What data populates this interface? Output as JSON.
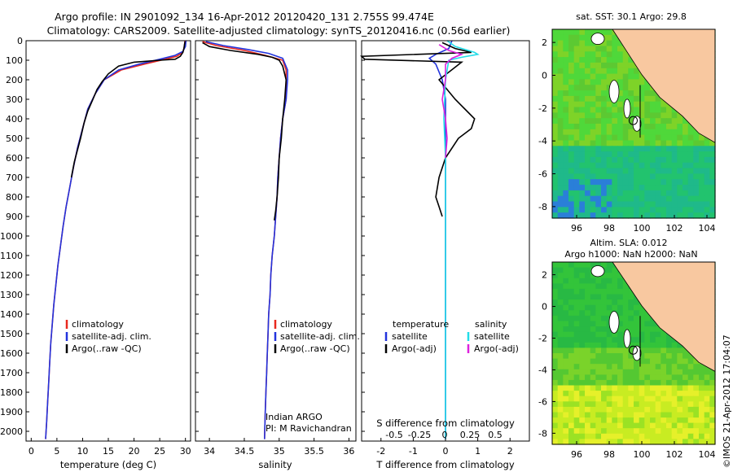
{
  "header": {
    "title_line1": "Argo profile: IN 2901092_134 16-Apr-2012 20120420_131 2.755S 99.474E",
    "title_line2": "Climatology: CARS2009. Satellite-adjusted climatology: synTS_20120416.nc (0.56d earlier)"
  },
  "colors": {
    "climatology": "#e8281e",
    "satellite": "#2233dd",
    "argo": "#000000",
    "satellite_salinity": "#22dde8",
    "argo_salinity_adj": "#dd22dd",
    "land": "#f8c8a0"
  },
  "chart_data": [
    {
      "type": "line",
      "panel": "temperature",
      "xlabel": "temperature (deg C)",
      "xlim": [
        -1,
        31
      ],
      "xticks": [
        0,
        5,
        10,
        15,
        20,
        25,
        30
      ],
      "ylim": [
        2050,
        0
      ],
      "yticks": [
        0,
        100,
        200,
        300,
        400,
        500,
        600,
        700,
        800,
        900,
        1000,
        1100,
        1200,
        1300,
        1400,
        1500,
        1600,
        1700,
        1800,
        1900,
        2000
      ],
      "legend": [
        "climatology",
        "satellite-adj. clim.",
        "Argo(..raw -QC)"
      ],
      "series": [
        {
          "name": "climatology",
          "color": "#e8281e",
          "points": [
            [
              29.9,
              0
            ],
            [
              29.8,
              30
            ],
            [
              29.5,
              60
            ],
            [
              28.3,
              80
            ],
            [
              26,
              95
            ],
            [
              22,
              120
            ],
            [
              17.5,
              150
            ],
            [
              14.2,
              200
            ],
            [
              12.5,
              270
            ],
            [
              11,
              350
            ],
            [
              10,
              450
            ],
            [
              9,
              550
            ],
            [
              8.2,
              650
            ],
            [
              7.5,
              750
            ],
            [
              6.8,
              850
            ],
            [
              6.2,
              950
            ],
            [
              5.7,
              1050
            ],
            [
              5.2,
              1150
            ],
            [
              4.8,
              1250
            ],
            [
              4.4,
              1350
            ],
            [
              4.1,
              1450
            ],
            [
              3.8,
              1550
            ],
            [
              3.6,
              1650
            ],
            [
              3.4,
              1750
            ],
            [
              3.2,
              1850
            ],
            [
              3.0,
              1950
            ],
            [
              2.8,
              2040
            ]
          ]
        },
        {
          "name": "satellite-adj. clim.",
          "color": "#2233dd",
          "points": [
            [
              30.1,
              0
            ],
            [
              30,
              30
            ],
            [
              29.5,
              55
            ],
            [
              28,
              75
            ],
            [
              25,
              95
            ],
            [
              21,
              120
            ],
            [
              17,
              150
            ],
            [
              14.2,
              200
            ],
            [
              12.5,
              270
            ],
            [
              11,
              350
            ],
            [
              10,
              450
            ],
            [
              9,
              550
            ],
            [
              8.2,
              650
            ],
            [
              7.5,
              750
            ],
            [
              6.8,
              850
            ],
            [
              6.2,
              950
            ],
            [
              5.7,
              1050
            ],
            [
              5.2,
              1150
            ],
            [
              4.8,
              1250
            ],
            [
              4.4,
              1350
            ],
            [
              4.1,
              1450
            ],
            [
              3.8,
              1550
            ],
            [
              3.6,
              1650
            ],
            [
              3.4,
              1750
            ],
            [
              3.2,
              1850
            ],
            [
              3.0,
              1950
            ],
            [
              2.8,
              2040
            ]
          ]
        },
        {
          "name": "Argo(..raw -QC)",
          "color": "#000000",
          "points": [
            [
              29.9,
              5
            ],
            [
              29.7,
              40
            ],
            [
              29.5,
              60
            ],
            [
              29,
              80
            ],
            [
              28,
              95
            ],
            [
              25,
              100
            ],
            [
              20,
              110
            ],
            [
              17,
              130
            ],
            [
              15,
              170
            ],
            [
              13.8,
              210
            ],
            [
              12.8,
              250
            ],
            [
              12,
              300
            ],
            [
              11,
              360
            ],
            [
              10.3,
              420
            ],
            [
              9.6,
              500
            ],
            [
              9,
              560
            ],
            [
              8.4,
              620
            ],
            [
              7.8,
              700
            ]
          ]
        }
      ]
    },
    {
      "type": "line",
      "panel": "salinity",
      "xlabel": "salinity",
      "xlim": [
        33.8,
        36.1
      ],
      "xticks": [
        34,
        34.5,
        35,
        35.5,
        36
      ],
      "ylim": [
        2050,
        0
      ],
      "legend": [
        "climatology",
        "satellite-adj. clim.",
        "Argo(..raw -QC)"
      ],
      "annotation": [
        "Indian ARGO",
        "PI: M Ravichandran"
      ],
      "series": [
        {
          "name": "climatology",
          "color": "#e8281e",
          "points": [
            [
              33.9,
              5
            ],
            [
              34.1,
              25
            ],
            [
              34.5,
              50
            ],
            [
              34.8,
              75
            ],
            [
              35.05,
              100
            ],
            [
              35.1,
              150
            ],
            [
              35.1,
              200
            ],
            [
              35.1,
              300
            ],
            [
              35.05,
              400
            ],
            [
              35.02,
              500
            ],
            [
              35.0,
              600
            ],
            [
              34.98,
              700
            ],
            [
              34.97,
              800
            ],
            [
              34.95,
              900
            ],
            [
              34.93,
              1000
            ],
            [
              34.9,
              1100
            ],
            [
              34.88,
              1200
            ],
            [
              34.87,
              1300
            ],
            [
              34.85,
              1400
            ],
            [
              34.84,
              1500
            ],
            [
              34.83,
              1600
            ],
            [
              34.82,
              1700
            ],
            [
              34.81,
              1800
            ],
            [
              34.8,
              1900
            ],
            [
              34.79,
              2040
            ]
          ]
        },
        {
          "name": "satellite-adj. clim.",
          "color": "#2233dd",
          "points": [
            [
              33.95,
              5
            ],
            [
              34.2,
              25
            ],
            [
              34.55,
              45
            ],
            [
              34.85,
              65
            ],
            [
              35.05,
              90
            ],
            [
              35.12,
              150
            ],
            [
              35.12,
              200
            ],
            [
              35.1,
              300
            ],
            [
              35.05,
              400
            ],
            [
              35.02,
              500
            ],
            [
              35.0,
              600
            ],
            [
              34.98,
              700
            ],
            [
              34.97,
              800
            ],
            [
              34.95,
              900
            ],
            [
              34.93,
              1000
            ],
            [
              34.9,
              1100
            ],
            [
              34.88,
              1200
            ],
            [
              34.87,
              1300
            ],
            [
              34.85,
              1400
            ],
            [
              34.84,
              1500
            ],
            [
              34.83,
              1600
            ],
            [
              34.82,
              1700
            ],
            [
              34.81,
              1800
            ],
            [
              34.8,
              1900
            ],
            [
              34.79,
              2040
            ]
          ]
        },
        {
          "name": "Argo(..raw -QC)",
          "color": "#000000",
          "points": [
            [
              33.9,
              10
            ],
            [
              34.0,
              30
            ],
            [
              34.3,
              50
            ],
            [
              34.7,
              70
            ],
            [
              34.9,
              85
            ],
            [
              35.0,
              100
            ],
            [
              35.05,
              130
            ],
            [
              35.1,
              200
            ],
            [
              35.08,
              300
            ],
            [
              35.05,
              400
            ],
            [
              35.03,
              500
            ],
            [
              35.0,
              600
            ],
            [
              34.99,
              700
            ],
            [
              34.97,
              800
            ],
            [
              34.95,
              870
            ],
            [
              34.93,
              920
            ]
          ]
        }
      ]
    },
    {
      "type": "line",
      "panel": "difference",
      "xlabel_bottom": "T difference from climatology",
      "xlabel_top": "S difference from climatology",
      "xlim_T": [
        -2.6,
        2.6
      ],
      "xticks_T": [
        -2,
        -1,
        0,
        1,
        2
      ],
      "xticks_S": [
        "-0.5",
        "-0.25",
        "0",
        "0.25",
        "0.5"
      ],
      "ylim": [
        2050,
        0
      ],
      "legend_temperature_title": "temperature",
      "legend_salinity_title": "salinity",
      "legend": [
        "satellite",
        "Argo(-adj)",
        "satellite",
        "Argo(-adj)"
      ],
      "series": [
        {
          "name": "satellite",
          "group": "temperature",
          "color": "#2233dd",
          "points": [
            [
              0.2,
              0
            ],
            [
              0.1,
              40
            ],
            [
              -0.3,
              70
            ],
            [
              -0.5,
              90
            ],
            [
              -0.3,
              120
            ],
            [
              -0.1,
              200
            ],
            [
              0,
              300
            ],
            [
              0,
              500
            ],
            [
              0,
              800
            ],
            [
              0,
              1200
            ],
            [
              0,
              1600
            ],
            [
              0,
              2040
            ]
          ]
        },
        {
          "name": "Argo(-adj)",
          "group": "temperature",
          "color": "#000000",
          "points": [
            [
              -0.1,
              10
            ],
            [
              0.3,
              40
            ],
            [
              0.8,
              60
            ],
            [
              -2.6,
              80
            ],
            [
              -2.5,
              95
            ],
            [
              0.5,
              110
            ],
            [
              -0.2,
              200
            ],
            [
              0.3,
              300
            ],
            [
              0.6,
              350
            ],
            [
              0.9,
              400
            ],
            [
              0.8,
              450
            ],
            [
              0.4,
              500
            ],
            [
              0.0,
              600
            ],
            [
              -0.2,
              700
            ],
            [
              -0.3,
              800
            ],
            [
              -0.2,
              850
            ],
            [
              -0.1,
              900
            ]
          ]
        },
        {
          "name": "satellite",
          "group": "salinity",
          "color": "#22dde8",
          "points": [
            [
              0.05,
              0
            ],
            [
              0.3,
              30
            ],
            [
              0.9,
              60
            ],
            [
              1.0,
              70
            ],
            [
              0.5,
              85
            ],
            [
              0.1,
              100
            ],
            [
              0,
              200
            ],
            [
              -0.05,
              400
            ],
            [
              0,
              600
            ],
            [
              0,
              800
            ],
            [
              0,
              1200
            ],
            [
              0,
              1600
            ],
            [
              0,
              2040
            ]
          ]
        },
        {
          "name": "Argo(-adj)",
          "group": "salinity",
          "color": "#dd22dd",
          "points": [
            [
              -0.2,
              20
            ],
            [
              0.1,
              50
            ],
            [
              0.5,
              70
            ],
            [
              0.2,
              90
            ],
            [
              0,
              120
            ],
            [
              0,
              200
            ],
            [
              -0.1,
              300
            ],
            [
              0,
              400
            ],
            [
              0.05,
              500
            ],
            [
              0,
              600
            ]
          ]
        }
      ]
    },
    {
      "type": "heatmap",
      "panel": "sst_map",
      "title": "sat. SST: 30.1  Argo: 29.8",
      "xticks": [
        96,
        98,
        100,
        102,
        104
      ],
      "yticks": [
        2,
        0,
        -2,
        -4,
        -6,
        -8
      ],
      "argo_position": [
        99.474,
        -2.755
      ]
    },
    {
      "type": "heatmap",
      "panel": "sla_map",
      "title_line1": "Altim. SLA: 0.012",
      "title_line2": "Argo h1000: NaN h2000: NaN",
      "xticks": [
        96,
        98,
        100,
        102,
        104
      ],
      "yticks": [
        2,
        0,
        -2,
        -4,
        -6,
        -8
      ],
      "argo_position": [
        99.474,
        -2.755
      ]
    }
  ],
  "footer": {
    "credit": "©IMOS 21-Apr-2012 17:04:07"
  }
}
